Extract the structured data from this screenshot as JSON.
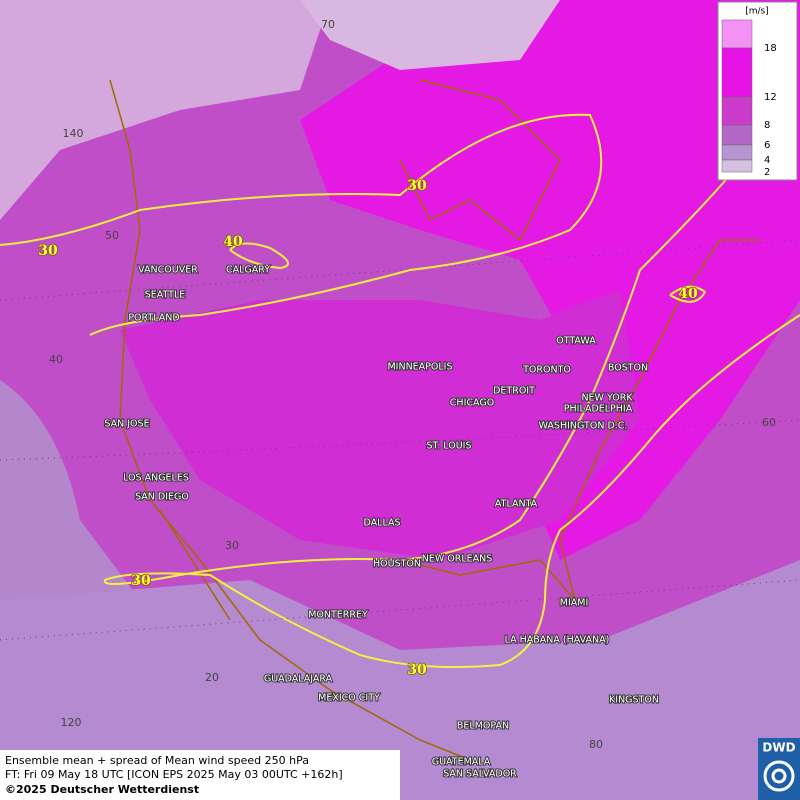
{
  "footer": {
    "line1": "Ensemble mean + spread of Mean wind speed 250 hPa",
    "line2": "FT: Fri 09 May 18 UTC [ICON EPS 2025 May 03 00UTC +162h]",
    "line3": "©2025 Deutscher Wetterdienst"
  },
  "logo": "DWD",
  "legend": {
    "unit": "[m/s]",
    "levels": [
      {
        "label": "18",
        "color": "#f590f5"
      },
      {
        "label": "12",
        "color": "#e612e6"
      },
      {
        "label": "8",
        "color": "#cc3ccc"
      },
      {
        "label": "6",
        "color": "#b466c6"
      },
      {
        "label": "4",
        "color": "#b894d2"
      },
      {
        "label": "2",
        "color": "#d6c0e2"
      }
    ]
  },
  "cities": [
    "VANCOUVER",
    "CALGARY",
    "SEATTLE",
    "PORTLAND",
    "MINNEAPOLIS",
    "TORONTO",
    "OTTAWA",
    "DETROIT",
    "CHICAGO",
    "BOSTON",
    "NEW YORK",
    "PHILADELPHIA",
    "WASHINGTON D.C.",
    "ST. LOUIS",
    "SAN JOSE",
    "LOS ANGELES",
    "SAN DIEGO",
    "ATLANTA",
    "DALLAS",
    "HOUSTON",
    "NEW ORLEANS",
    "MIAMI",
    "MONTERREY",
    "LA HABANA (HAVANA)",
    "GUADALAJARA",
    "MEXICO CITY",
    "KINGSTON",
    "BELMOPAN",
    "GUATEMALA",
    "SAN SALVADOR"
  ],
  "grid_labels": [
    "70",
    "140",
    "50",
    "40",
    "30",
    "20",
    "120",
    "80",
    "60"
  ],
  "contour_labels": [
    "30",
    "30",
    "40",
    "40",
    "30",
    "30"
  ]
}
